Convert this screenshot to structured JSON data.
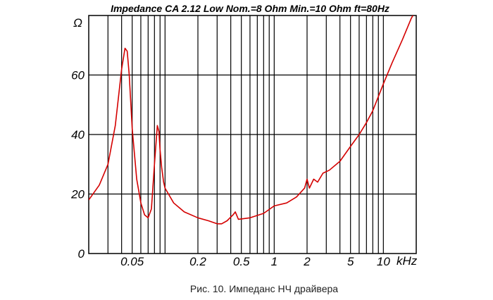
{
  "chart_data": {
    "type": "line",
    "title": "Impedance CA 2.12 Low  Nom.=8 Ohm  Min.=10 Ohm ft=80Hz",
    "caption": "Рис. 10. Импеданс НЧ драйвера",
    "y_unit": "Ω",
    "x_unit": "kHz",
    "x_scale": "log",
    "xlim": [
      0.02,
      20
    ],
    "ylim": [
      0,
      80
    ],
    "grid": true,
    "x_tick_labels": [
      {
        "value": 0.05,
        "label": "0.05"
      },
      {
        "value": 0.2,
        "label": "0.2"
      },
      {
        "value": 0.5,
        "label": "0.5"
      },
      {
        "value": 1,
        "label": "1"
      },
      {
        "value": 2,
        "label": "2"
      },
      {
        "value": 5,
        "label": "5"
      },
      {
        "value": 10,
        "label": "10"
      }
    ],
    "y_tick_labels": [
      {
        "value": 0,
        "label": "0"
      },
      {
        "value": 20,
        "label": "20"
      },
      {
        "value": 40,
        "label": "40"
      },
      {
        "value": 60,
        "label": "60"
      }
    ],
    "series_color": "#d40000",
    "series": [
      {
        "x": [
          0.02,
          0.025,
          0.03,
          0.035,
          0.04,
          0.043,
          0.045,
          0.047,
          0.05,
          0.055,
          0.06,
          0.065,
          0.07,
          0.075,
          0.08,
          0.085,
          0.088,
          0.09,
          0.093,
          0.097,
          0.1,
          0.12,
          0.15,
          0.2,
          0.25,
          0.3,
          0.33,
          0.37,
          0.42,
          0.44,
          0.47,
          0.6,
          0.8,
          1,
          1.3,
          1.6,
          1.9,
          2.0,
          2.1,
          2.3,
          2.5,
          2.8,
          3.2,
          4,
          5,
          6,
          7,
          8,
          10,
          12,
          15,
          18,
          20
        ],
        "y": [
          18,
          23,
          30,
          43,
          62,
          69,
          68,
          60,
          42,
          25,
          17,
          13,
          12,
          15,
          30,
          43,
          41,
          35,
          29,
          24,
          22,
          17,
          14,
          12,
          11,
          10,
          10,
          11,
          13,
          14,
          11.5,
          12,
          13.5,
          16,
          17,
          19,
          22,
          25,
          22,
          25,
          24,
          27,
          28,
          31,
          36,
          40,
          44,
          48,
          57,
          64,
          72,
          79,
          82
        ]
      }
    ]
  }
}
